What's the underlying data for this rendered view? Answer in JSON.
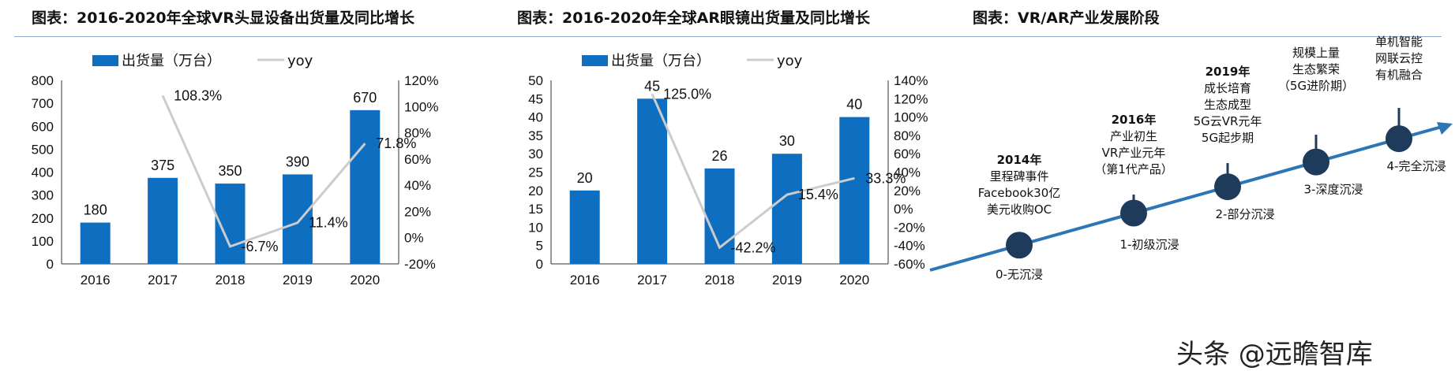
{
  "titles": {
    "vr": "图表：2016-2020年全球VR头显设备出货量及同比增长",
    "ar": "图表：2016-2020年全球AR眼镜出货量及同比增长",
    "stages": "图表：VR/AR产业发展阶段"
  },
  "chart_data": [
    {
      "type": "bar",
      "categories": [
        "2016",
        "2017",
        "2018",
        "2019",
        "2020"
      ],
      "series": [
        {
          "name": "出货量（万台）",
          "type": "bar",
          "axis": "left",
          "values": [
            180,
            375,
            350,
            390,
            670
          ],
          "labels": [
            "180",
            "375",
            "350",
            "390",
            "670"
          ]
        },
        {
          "name": "yoy",
          "type": "line",
          "axis": "right",
          "values": [
            null,
            108.3,
            -6.7,
            11.4,
            71.8
          ],
          "labels": [
            "",
            "108.3%",
            "-6.7%",
            "11.4%",
            "71.8%"
          ]
        }
      ],
      "left_axis": {
        "min": 0,
        "max": 800,
        "ticks": [
          "0",
          "100",
          "200",
          "300",
          "400",
          "500",
          "600",
          "700",
          "800"
        ]
      },
      "right_axis": {
        "min": -20,
        "max": 120,
        "ticks": [
          "-20%",
          "0%",
          "20%",
          "40%",
          "60%",
          "80%",
          "100%",
          "120%"
        ]
      },
      "bar_color": "#0e6fc1",
      "line_color": "#cccccc",
      "legend": "top",
      "grid": false
    },
    {
      "type": "bar",
      "categories": [
        "2016",
        "2017",
        "2018",
        "2019",
        "2020"
      ],
      "series": [
        {
          "name": "出货量（万台）",
          "type": "bar",
          "axis": "left",
          "values": [
            20,
            45,
            26,
            30,
            40
          ],
          "labels": [
            "20",
            "45",
            "26",
            "30",
            "40"
          ]
        },
        {
          "name": "yoy",
          "type": "line",
          "axis": "right",
          "values": [
            null,
            125.0,
            -42.2,
            15.4,
            33.3
          ],
          "labels": [
            "",
            "125.0%",
            "-42.2%",
            "15.4%",
            "33.3%"
          ]
        }
      ],
      "left_axis": {
        "min": 0,
        "max": 50,
        "ticks": [
          "0",
          "5",
          "10",
          "15",
          "20",
          "25",
          "30",
          "35",
          "40",
          "45",
          "50"
        ]
      },
      "right_axis": {
        "min": -60,
        "max": 140,
        "ticks": [
          "-60%",
          "-40%",
          "-20%",
          "0%",
          "20%",
          "40%",
          "60%",
          "80%",
          "100%",
          "120%",
          "140%"
        ]
      },
      "bar_color": "#0e6fc1",
      "line_color": "#cccccc",
      "legend": "top",
      "grid": false
    }
  ],
  "stages": [
    {
      "name": "0-无沉浸",
      "lines": [
        {
          "t": "2014年",
          "bold": true
        },
        {
          "t": "里程碑事件"
        },
        {
          "t": "Facebook30亿"
        },
        {
          "t": "美元收购OC"
        }
      ]
    },
    {
      "name": "1-初级沉浸",
      "lines": [
        {
          "t": "2016年",
          "bold": true
        },
        {
          "t": "产业初生"
        },
        {
          "t": "VR产业元年"
        },
        {
          "t": "（第1代产品）"
        }
      ]
    },
    {
      "name": "2-部分沉浸",
      "lines": [
        {
          "t": "2019年",
          "bold": true
        },
        {
          "t": "成长培育"
        },
        {
          "t": "生态成型"
        },
        {
          "t": "5G云VR元年"
        },
        {
          "t": "5G起步期"
        }
      ]
    },
    {
      "name": "3-深度沉浸",
      "lines": [
        {
          "t": "规模上量"
        },
        {
          "t": "生态繁荣"
        },
        {
          "t": "（5G进阶期）"
        }
      ]
    },
    {
      "name": "4-完全沉浸",
      "lines": [
        {
          "t": "单机智能"
        },
        {
          "t": "网联云控"
        },
        {
          "t": "有机融合"
        }
      ]
    }
  ],
  "colors": {
    "stage_node": "#1f3b5c",
    "stage_line": "#2e75b6"
  },
  "watermark": "头条 @远瞻智库"
}
